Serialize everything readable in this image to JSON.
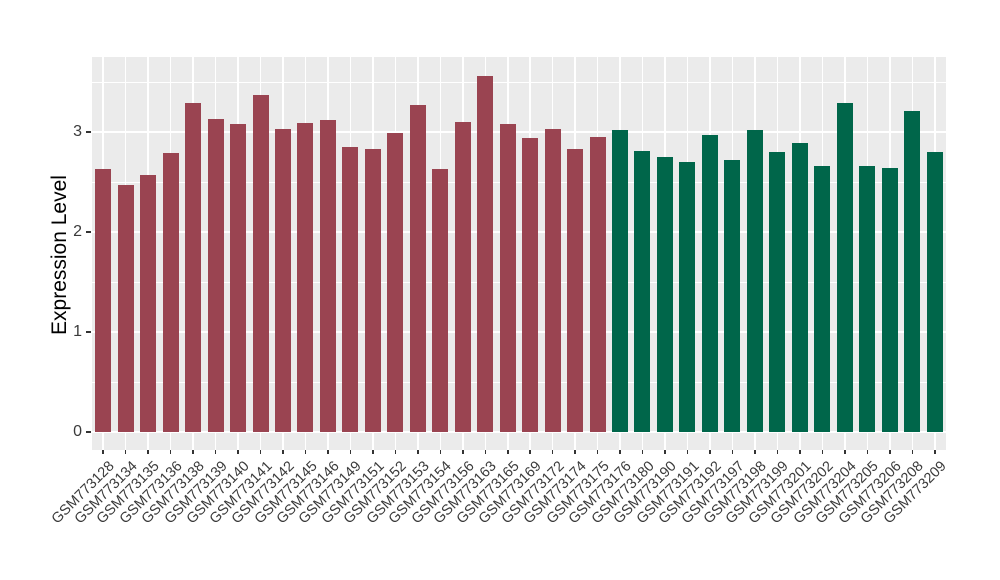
{
  "chart_data": {
    "type": "bar",
    "title": "",
    "xlabel": "",
    "ylabel": "Expression Level",
    "ylim": [
      0,
      3.74
    ],
    "yticks": [
      0,
      1,
      2,
      3
    ],
    "grid": true,
    "legend": false,
    "panel_background": "#EBEBEB",
    "grid_color": "#FFFFFF",
    "axis_text_color": "#3a3a3a",
    "categories": [
      "GSM773128",
      "GSM773134",
      "GSM773135",
      "GSM773136",
      "GSM773138",
      "GSM773139",
      "GSM773140",
      "GSM773141",
      "GSM773142",
      "GSM773145",
      "GSM773146",
      "GSM773149",
      "GSM773151",
      "GSM773152",
      "GSM773153",
      "GSM773154",
      "GSM773156",
      "GSM773163",
      "GSM773165",
      "GSM773169",
      "GSM773172",
      "GSM773174",
      "GSM773175",
      "GSM773176",
      "GSM773180",
      "GSM773190",
      "GSM773191",
      "GSM773192",
      "GSM773197",
      "GSM773198",
      "GSM773199",
      "GSM773201",
      "GSM773202",
      "GSM773204",
      "GSM773205",
      "GSM773206",
      "GSM773208",
      "GSM773209"
    ],
    "values": [
      2.63,
      2.47,
      2.57,
      2.79,
      3.29,
      3.13,
      3.08,
      3.37,
      3.03,
      3.09,
      3.12,
      2.85,
      2.83,
      2.99,
      3.27,
      2.63,
      3.1,
      3.56,
      3.08,
      2.94,
      3.03,
      2.83,
      2.95,
      3.02,
      2.81,
      2.75,
      2.7,
      2.97,
      2.72,
      3.02,
      2.8,
      2.89,
      2.66,
      3.29,
      2.66,
      2.64,
      3.21,
      2.8
    ],
    "bar_groups": [
      "maroon",
      "maroon",
      "maroon",
      "maroon",
      "maroon",
      "maroon",
      "maroon",
      "maroon",
      "maroon",
      "maroon",
      "maroon",
      "maroon",
      "maroon",
      "maroon",
      "maroon",
      "maroon",
      "maroon",
      "maroon",
      "maroon",
      "maroon",
      "maroon",
      "maroon",
      "maroon",
      "green",
      "green",
      "green",
      "green",
      "green",
      "green",
      "green",
      "green",
      "green",
      "green",
      "green",
      "green",
      "green",
      "green",
      "green"
    ],
    "group_colors": {
      "maroon": "#9A4451",
      "green": "#00664A"
    }
  }
}
